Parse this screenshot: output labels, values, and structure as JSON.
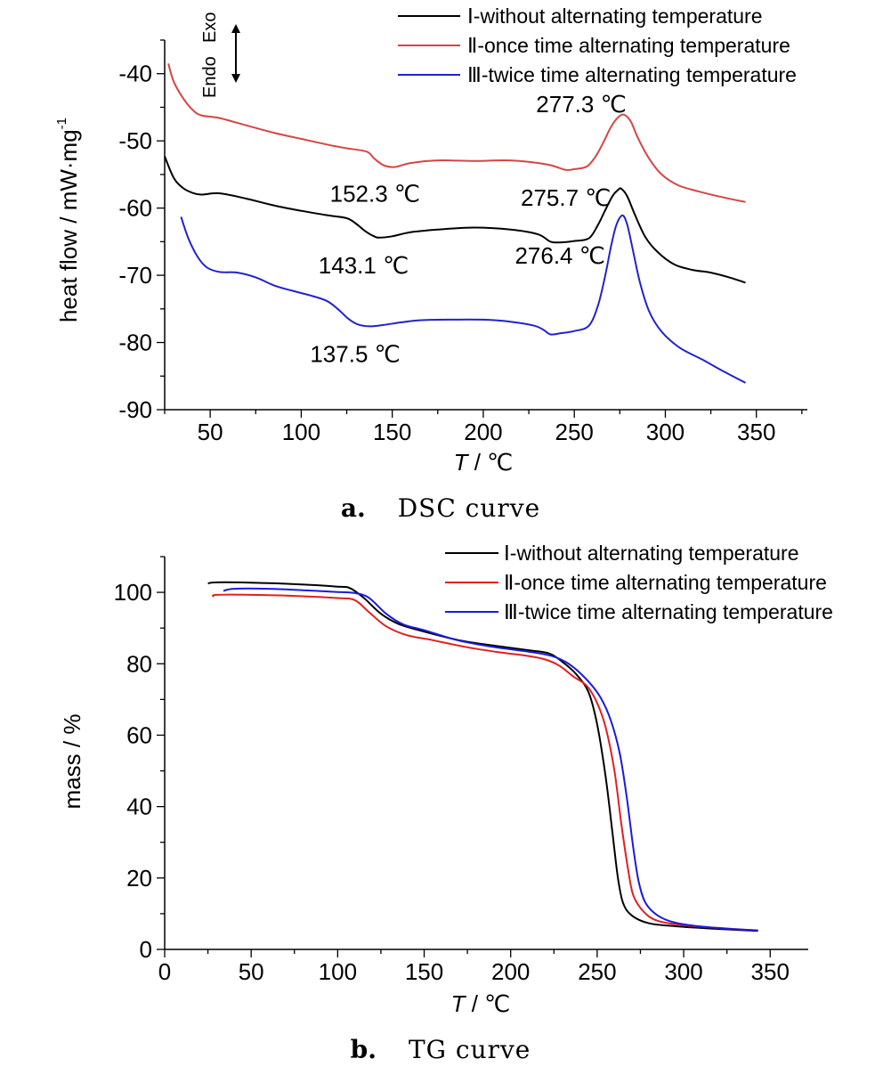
{
  "chart_data": [
    {
      "type": "line",
      "caption_letter": "a.",
      "caption_text": "DSC curve",
      "xlabel_italic": "T",
      "xlabel_rest": " / ℃",
      "ylabel": "heat flow / mW·mg",
      "ylabel_sup": "-1",
      "xlim": [
        25,
        378
      ],
      "ylim": [
        -90,
        -35
      ],
      "xticks": [
        50,
        100,
        150,
        200,
        250,
        300,
        350
      ],
      "yticks": [
        -40,
        -50,
        -60,
        -70,
        -80,
        -90
      ],
      "exo_label": "Exo",
      "endo_label": "Endo",
      "legend_position": "top-right",
      "series": [
        {
          "name": "Ⅰ-without alternating temperature",
          "color": "#000000",
          "points": [
            [
              25,
              -52.3
            ],
            [
              30,
              -55.5
            ],
            [
              35,
              -57
            ],
            [
              40,
              -57.7
            ],
            [
              45,
              -58
            ],
            [
              55,
              -57.8
            ],
            [
              70,
              -58.6
            ],
            [
              85,
              -59.6
            ],
            [
              100,
              -60.4
            ],
            [
              115,
              -61.1
            ],
            [
              125,
              -61.5
            ],
            [
              130,
              -62.3
            ],
            [
              135,
              -63.4
            ],
            [
              140,
              -64.2
            ],
            [
              143,
              -64.4
            ],
            [
              150,
              -64.2
            ],
            [
              160,
              -63.6
            ],
            [
              175,
              -63.2
            ],
            [
              195,
              -62.9
            ],
            [
              215,
              -63.2
            ],
            [
              230,
              -63.9
            ],
            [
              237,
              -65
            ],
            [
              243,
              -65.1
            ],
            [
              250,
              -64.9
            ],
            [
              258,
              -64.5
            ],
            [
              263,
              -62.5
            ],
            [
              267,
              -60.3
            ],
            [
              271,
              -58.2
            ],
            [
              274,
              -57.3
            ],
            [
              275.7,
              -57.1
            ],
            [
              279,
              -58.2
            ],
            [
              283,
              -60.8
            ],
            [
              289,
              -64.3
            ],
            [
              296,
              -66.6
            ],
            [
              305,
              -68.4
            ],
            [
              315,
              -69.2
            ],
            [
              325,
              -69.6
            ],
            [
              335,
              -70.3
            ],
            [
              344,
              -71.1
            ]
          ]
        },
        {
          "name": "Ⅱ-once time alternating temperature",
          "color": "#d64545",
          "points": [
            [
              27,
              -38.5
            ],
            [
              30,
              -41.2
            ],
            [
              35,
              -43.6
            ],
            [
              40,
              -45.3
            ],
            [
              45,
              -46.2
            ],
            [
              55,
              -46.6
            ],
            [
              70,
              -47.7
            ],
            [
              85,
              -48.8
            ],
            [
              100,
              -49.7
            ],
            [
              115,
              -50.6
            ],
            [
              125,
              -51.1
            ],
            [
              136,
              -51.6
            ],
            [
              140,
              -52.6
            ],
            [
              145,
              -53.6
            ],
            [
              150,
              -53.9
            ],
            [
              153,
              -53.8
            ],
            [
              160,
              -53.3
            ],
            [
              175,
              -52.9
            ],
            [
              195,
              -53
            ],
            [
              215,
              -52.9
            ],
            [
              235,
              -53.5
            ],
            [
              245,
              -54.3
            ],
            [
              250,
              -54.2
            ],
            [
              257,
              -53.8
            ],
            [
              262,
              -52.2
            ],
            [
              266,
              -50.2
            ],
            [
              270,
              -48
            ],
            [
              274,
              -46.5
            ],
            [
              277.3,
              -46.1
            ],
            [
              281,
              -47.1
            ],
            [
              285,
              -49.6
            ],
            [
              291,
              -52.6
            ],
            [
              298,
              -55
            ],
            [
              307,
              -56.6
            ],
            [
              318,
              -57.5
            ],
            [
              330,
              -58.3
            ],
            [
              344,
              -59.1
            ]
          ]
        },
        {
          "name": "Ⅲ-twice time alternating temperature",
          "color": "#2222cc",
          "points": [
            [
              34,
              -61.3
            ],
            [
              38,
              -64.5
            ],
            [
              43,
              -67.2
            ],
            [
              48,
              -68.8
            ],
            [
              55,
              -69.5
            ],
            [
              65,
              -69.6
            ],
            [
              75,
              -70.3
            ],
            [
              85,
              -71.5
            ],
            [
              95,
              -72.3
            ],
            [
              105,
              -73
            ],
            [
              114,
              -73.8
            ],
            [
              120,
              -75
            ],
            [
              126,
              -76.5
            ],
            [
              131,
              -77.3
            ],
            [
              137.5,
              -77.6
            ],
            [
              145,
              -77.4
            ],
            [
              155,
              -77
            ],
            [
              165,
              -76.7
            ],
            [
              180,
              -76.6
            ],
            [
              200,
              -76.6
            ],
            [
              215,
              -76.9
            ],
            [
              228,
              -77.5
            ],
            [
              233,
              -78.1
            ],
            [
              237,
              -78.8
            ],
            [
              243,
              -78.6
            ],
            [
              250,
              -78.3
            ],
            [
              258,
              -77.5
            ],
            [
              263,
              -74.5
            ],
            [
              267,
              -70
            ],
            [
              270,
              -65.9
            ],
            [
              273,
              -62.6
            ],
            [
              276.4,
              -61.1
            ],
            [
              279,
              -62.4
            ],
            [
              282,
              -66
            ],
            [
              286,
              -71
            ],
            [
              291,
              -75.3
            ],
            [
              298,
              -78.4
            ],
            [
              308,
              -80.8
            ],
            [
              320,
              -82.5
            ],
            [
              332,
              -84.3
            ],
            [
              344,
              -86
            ]
          ]
        }
      ],
      "annotations": [
        {
          "text": "277.3 ℃",
          "x": 277.3,
          "y": -46.1,
          "color": "#d64545"
        },
        {
          "text": "152.3 ℃",
          "x": 152.3,
          "y": -53.9,
          "color": "#d64545"
        },
        {
          "text": "275.7 ℃",
          "x": 275.7,
          "y": -57.1,
          "color": "#000000"
        },
        {
          "text": "143.1 ℃",
          "x": 143.1,
          "y": -64.4,
          "color": "#000000"
        },
        {
          "text": "276.4 ℃",
          "x": 276.4,
          "y": -61.1,
          "color": "#2222cc"
        },
        {
          "text": "137.5 ℃",
          "x": 137.5,
          "y": -77.6,
          "color": "#2222cc"
        }
      ]
    },
    {
      "type": "line",
      "caption_letter": "b.",
      "caption_text": "TG curve",
      "xlabel_italic": "T",
      "xlabel_rest": " / ℃",
      "ylabel": "mass / %",
      "xlim": [
        0,
        372
      ],
      "ylim": [
        0,
        110
      ],
      "xticks": [
        0,
        50,
        100,
        150,
        200,
        250,
        300,
        350
      ],
      "yticks": [
        0,
        20,
        40,
        60,
        80,
        100
      ],
      "legend_position": "top-right",
      "series": [
        {
          "name": "Ⅰ-without alternating temperature",
          "color": "#000000",
          "points": [
            [
              25,
              102.5
            ],
            [
              30,
              102.8
            ],
            [
              50,
              102.7
            ],
            [
              75,
              102.3
            ],
            [
              100,
              101.6
            ],
            [
              107,
              101.2
            ],
            [
              115,
              98.5
            ],
            [
              125,
              94
            ],
            [
              135,
              91.2
            ],
            [
              150,
              89
            ],
            [
              170,
              86.6
            ],
            [
              190,
              85.1
            ],
            [
              210,
              83.8
            ],
            [
              222,
              82.9
            ],
            [
              230,
              80.5
            ],
            [
              238,
              77
            ],
            [
              245,
              72
            ],
            [
              250,
              63
            ],
            [
              255,
              48
            ],
            [
              259,
              32
            ],
            [
              262,
              20
            ],
            [
              265,
              13
            ],
            [
              270,
              9.5
            ],
            [
              280,
              7.3
            ],
            [
              295,
              6.5
            ],
            [
              310,
              6
            ],
            [
              325,
              5.6
            ],
            [
              343,
              5.2
            ]
          ]
        },
        {
          "name": "Ⅱ-once time alternating temperature",
          "color": "#e02020",
          "points": [
            [
              28,
              98.7
            ],
            [
              30,
              99.3
            ],
            [
              50,
              99.3
            ],
            [
              75,
              99
            ],
            [
              100,
              98.4
            ],
            [
              110,
              97.8
            ],
            [
              118,
              94.5
            ],
            [
              128,
              90.5
            ],
            [
              140,
              88
            ],
            [
              155,
              86.6
            ],
            [
              175,
              84.6
            ],
            [
              195,
              83.1
            ],
            [
              210,
              82.2
            ],
            [
              220,
              81.2
            ],
            [
              228,
              79.5
            ],
            [
              236,
              76.5
            ],
            [
              244,
              73.8
            ],
            [
              250,
              69
            ],
            [
              255,
              62
            ],
            [
              260,
              50
            ],
            [
              264,
              35
            ],
            [
              268,
              22
            ],
            [
              271,
              15
            ],
            [
              277,
              10.5
            ],
            [
              285,
              8
            ],
            [
              300,
              6.8
            ],
            [
              320,
              6
            ],
            [
              343,
              5.3
            ]
          ]
        },
        {
          "name": "Ⅲ-twice time alternating temperature",
          "color": "#1a1ae0",
          "points": [
            [
              34,
              100.4
            ],
            [
              40,
              101
            ],
            [
              60,
              101
            ],
            [
              80,
              100.6
            ],
            [
              100,
              100.1
            ],
            [
              110,
              99.8
            ],
            [
              118,
              98.5
            ],
            [
              128,
              94
            ],
            [
              138,
              91
            ],
            [
              150,
              89.4
            ],
            [
              170,
              86.5
            ],
            [
              190,
              84.7
            ],
            [
              210,
              83.4
            ],
            [
              225,
              82
            ],
            [
              235,
              79.5
            ],
            [
              245,
              75
            ],
            [
              252,
              70.5
            ],
            [
              258,
              64
            ],
            [
              263,
              55
            ],
            [
              267,
              43
            ],
            [
              271,
              28
            ],
            [
              274,
              19
            ],
            [
              278,
              13
            ],
            [
              285,
              9.5
            ],
            [
              295,
              7.5
            ],
            [
              310,
              6.4
            ],
            [
              325,
              5.8
            ],
            [
              343,
              5.3
            ]
          ]
        }
      ]
    }
  ]
}
